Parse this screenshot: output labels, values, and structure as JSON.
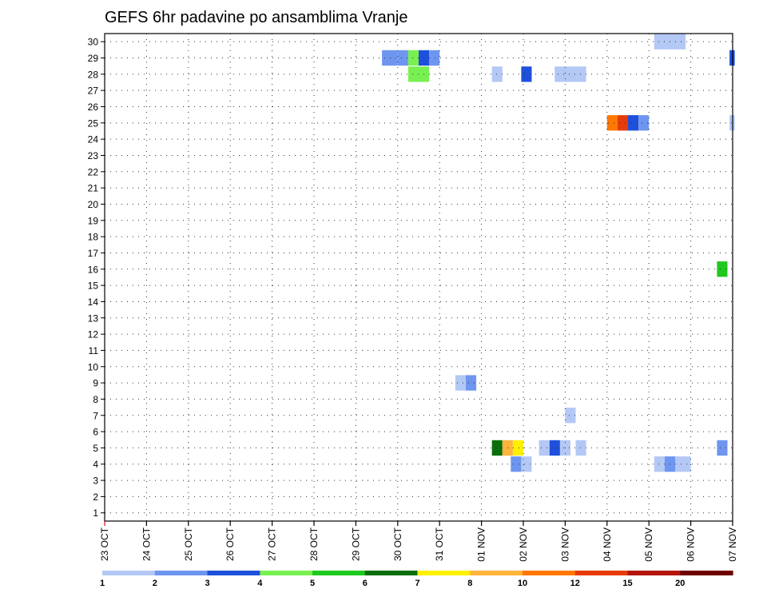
{
  "chart_data": {
    "type": "heatmap",
    "title": "GEFS 6hr padavine po ansamblima Vranje",
    "x_labels": [
      "23 OCT",
      "24 OCT",
      "25 OCT",
      "26 OCT",
      "27 OCT",
      "28 OCT",
      "29 OCT",
      "30 OCT",
      "31 OCT",
      "01 NOV",
      "02 NOV",
      "03 NOV",
      "04 NOV",
      "05 NOV",
      "06 NOV",
      "07 NOV"
    ],
    "x_unit": "6-hour step",
    "xlim": [
      0,
      60
    ],
    "y_ticks": [
      1,
      2,
      3,
      4,
      5,
      6,
      7,
      8,
      9,
      10,
      11,
      12,
      13,
      14,
      15,
      16,
      17,
      18,
      19,
      20,
      21,
      22,
      23,
      24,
      25,
      26,
      27,
      28,
      29,
      30
    ],
    "ylim": [
      0,
      30
    ],
    "legend_labels": [
      "1",
      "2",
      "3",
      "4",
      "5",
      "6",
      "7",
      "8",
      "10",
      "12",
      "15",
      "20"
    ],
    "legend_colors": [
      "#b4c8f5",
      "#6e96f0",
      "#1e50dc",
      "#78f050",
      "#1ec81e",
      "#0a6e0a",
      "#fff000",
      "#ffb43c",
      "#ff7800",
      "#e63c0a",
      "#b4140a",
      "#6e0000"
    ],
    "grid": true,
    "cells": [
      {
        "step": 26.5,
        "member": 29,
        "width": 1.5,
        "value": 2
      },
      {
        "step": 28,
        "member": 29,
        "width": 1,
        "value": 2
      },
      {
        "step": 29,
        "member": 29,
        "width": 1,
        "value": 4
      },
      {
        "step": 30,
        "member": 29,
        "width": 1,
        "value": 3
      },
      {
        "step": 31,
        "member": 29,
        "width": 1,
        "value": 2
      },
      {
        "step": 29,
        "member": 28,
        "width": 2,
        "value": 4
      },
      {
        "step": 37,
        "member": 28,
        "width": 1,
        "value": 1
      },
      {
        "step": 39.8,
        "member": 28,
        "width": 1,
        "value": 3
      },
      {
        "step": 43,
        "member": 28,
        "width": 3,
        "value": 1
      },
      {
        "step": 52.5,
        "member": 30,
        "width": 3,
        "value": 1
      },
      {
        "step": 59.7,
        "member": 29,
        "width": 0.5,
        "value": 3
      },
      {
        "step": 48,
        "member": 25,
        "width": 1,
        "value": 10
      },
      {
        "step": 49,
        "member": 25,
        "width": 1,
        "value": 12
      },
      {
        "step": 50,
        "member": 25,
        "width": 1,
        "value": 3
      },
      {
        "step": 51,
        "member": 25,
        "width": 1,
        "value": 2
      },
      {
        "step": 59.7,
        "member": 25,
        "width": 0.5,
        "value": 1
      },
      {
        "step": 58.5,
        "member": 16,
        "width": 1,
        "value": 5
      },
      {
        "step": 33.5,
        "member": 9,
        "width": 1,
        "value": 1
      },
      {
        "step": 34.5,
        "member": 9,
        "width": 1,
        "value": 2
      },
      {
        "step": 44,
        "member": 7,
        "width": 1,
        "value": 1
      },
      {
        "step": 37,
        "member": 5,
        "width": 1,
        "value": 6
      },
      {
        "step": 38,
        "member": 5,
        "width": 1,
        "value": 8
      },
      {
        "step": 39,
        "member": 5,
        "width": 1,
        "value": 7
      },
      {
        "step": 41.5,
        "member": 5,
        "width": 1,
        "value": 1
      },
      {
        "step": 42.5,
        "member": 5,
        "width": 1,
        "value": 3
      },
      {
        "step": 43.5,
        "member": 5,
        "width": 1,
        "value": 1
      },
      {
        "step": 45,
        "member": 5,
        "width": 1,
        "value": 1
      },
      {
        "step": 58.5,
        "member": 5,
        "width": 1,
        "value": 2
      },
      {
        "step": 38.8,
        "member": 4,
        "width": 1,
        "value": 2
      },
      {
        "step": 39.8,
        "member": 4,
        "width": 1,
        "value": 1
      },
      {
        "step": 52.5,
        "member": 4,
        "width": 1,
        "value": 1
      },
      {
        "step": 53.5,
        "member": 4,
        "width": 1,
        "value": 2
      },
      {
        "step": 54.5,
        "member": 4,
        "width": 1.5,
        "value": 1
      }
    ]
  }
}
